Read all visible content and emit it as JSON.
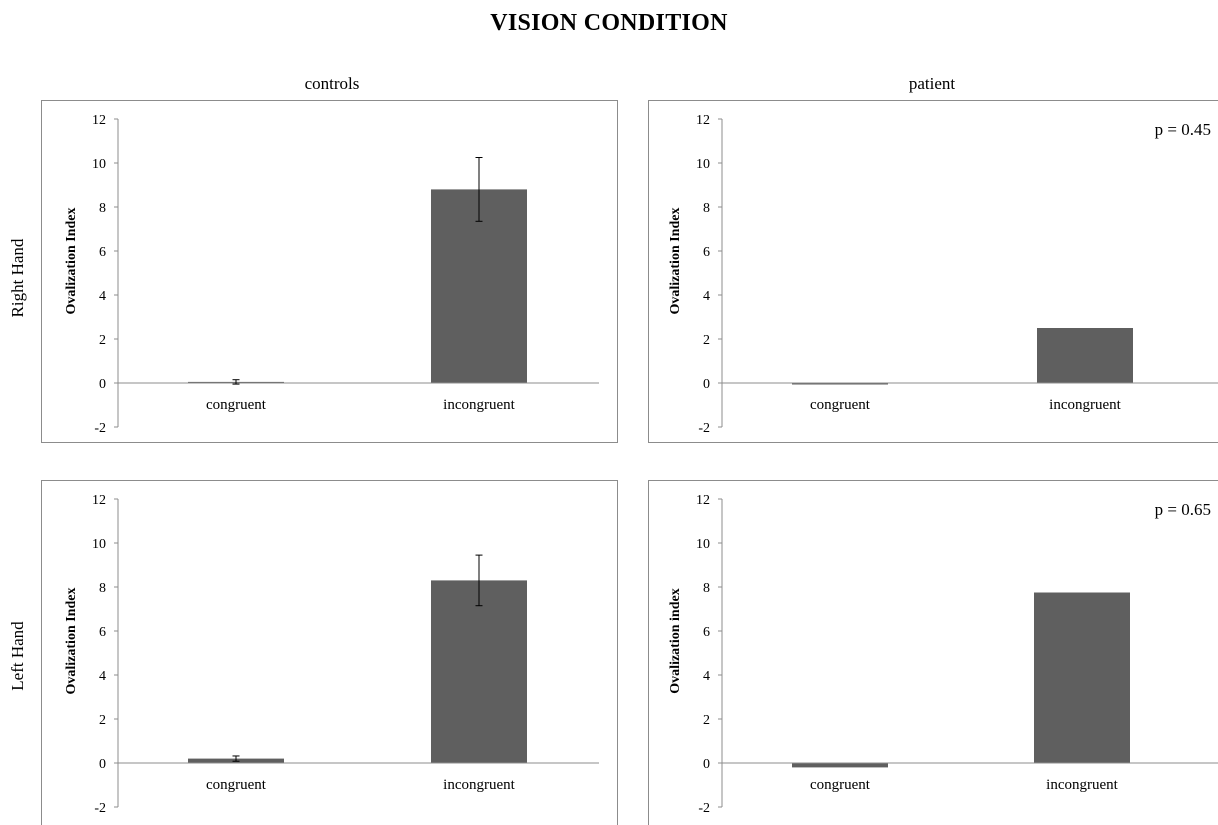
{
  "figure": {
    "title": "VISION CONDITION",
    "columns": [
      "controls",
      "patient"
    ],
    "rows": [
      "Right Hand",
      "Left Hand"
    ]
  },
  "colors": {
    "bar": "#5f5f5f",
    "axis": "#8c8c8c",
    "frame": "#8c8c8c"
  },
  "chart_data": [
    {
      "type": "bar",
      "panel": "controls / Right Hand",
      "title": "",
      "categories": [
        "congruent",
        "incongruent"
      ],
      "values": [
        0.05,
        8.8
      ],
      "error": [
        0.1,
        1.45
      ],
      "ylabel": "Ovalization Index",
      "ylim": [
        -2,
        12
      ],
      "yticks": [
        -2,
        0,
        2,
        4,
        6,
        8,
        10,
        12
      ],
      "annotation": "",
      "grid": false,
      "legend": "none"
    },
    {
      "type": "bar",
      "panel": "patient / Right Hand",
      "title": "",
      "categories": [
        "congruent",
        "incongruent"
      ],
      "values": [
        -0.05,
        2.5
      ],
      "error": null,
      "ylabel": "Ovalization Index",
      "ylim": [
        -2,
        12
      ],
      "yticks": [
        -2,
        0,
        2,
        4,
        6,
        8,
        10,
        12
      ],
      "annotation": "p = 0.45",
      "grid": false,
      "legend": "none"
    },
    {
      "type": "bar",
      "panel": "controls / Left Hand",
      "title": "",
      "categories": [
        "congruent",
        "incongruent"
      ],
      "values": [
        0.2,
        8.3
      ],
      "error": [
        0.12,
        1.15
      ],
      "ylabel": "Ovalization Index",
      "ylim": [
        -2,
        12
      ],
      "yticks": [
        -2,
        0,
        2,
        4,
        6,
        8,
        10,
        12
      ],
      "annotation": "",
      "grid": false,
      "legend": "none"
    },
    {
      "type": "bar",
      "panel": "patient / Left Hand",
      "title": "",
      "categories": [
        "congruent",
        "incongruent"
      ],
      "values": [
        -0.2,
        7.75
      ],
      "error": null,
      "ylabel": "Ovalization index",
      "ylim": [
        -2,
        12
      ],
      "yticks": [
        -2,
        0,
        2,
        4,
        6,
        8,
        10,
        12
      ],
      "annotation": "p = 0.65",
      "grid": false,
      "legend": "none"
    }
  ]
}
